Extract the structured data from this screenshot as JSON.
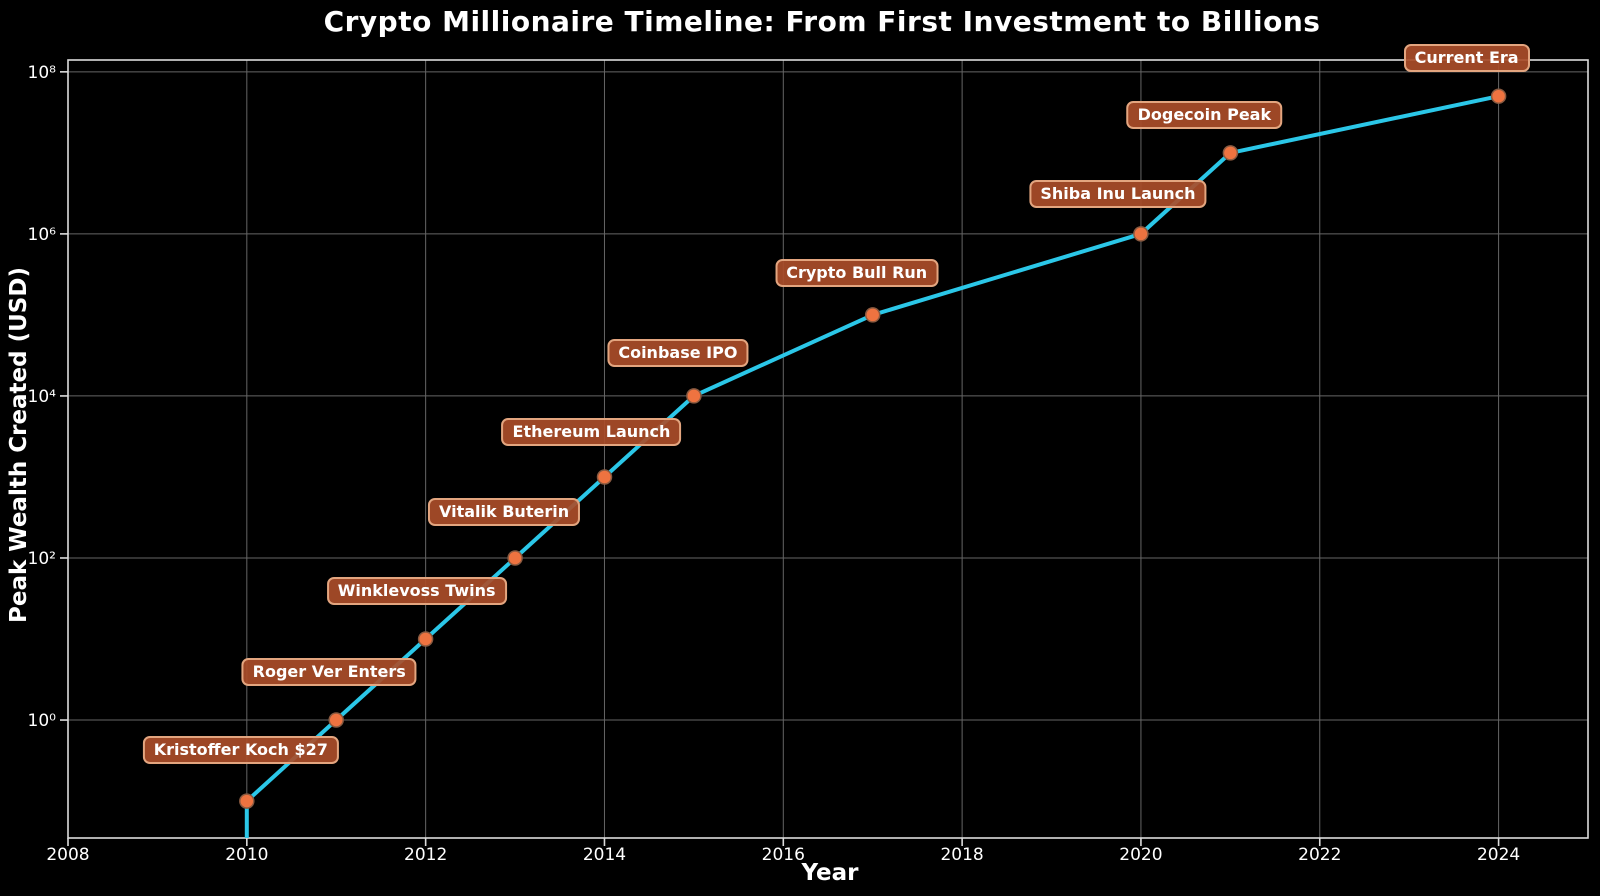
{
  "chart_data": {
    "type": "line",
    "title": "Crypto Millionaire Timeline: From First Investment to Billions",
    "xlabel": "Year",
    "ylabel": "Peak Wealth Created (USD)",
    "yscale": "log",
    "grid": true,
    "legend": "none",
    "xlim": [
      2008,
      2025
    ],
    "ylim": [
      0.035,
      140000000
    ],
    "x_ticks": [
      2008,
      2010,
      2012,
      2014,
      2016,
      2018,
      2020,
      2022,
      2024
    ],
    "y_tick_exponents": [
      0,
      2,
      4,
      6,
      8
    ],
    "colors": {
      "background": "#000000",
      "text": "#ffffff",
      "grid": "#666666",
      "spine": "#dcdcdc",
      "line": "#2bc7e8",
      "marker": "#ee7340",
      "marker_edge": "#8a5a40",
      "annotation_fill": "#aa4d29",
      "annotation_border": "#e3a57f"
    },
    "points": [
      {
        "year": 2010,
        "value": 0.027,
        "label": null,
        "label_offset": null
      },
      {
        "year": 2010,
        "value": 0.1,
        "label": "Kristoffer Koch $27",
        "label_offset": [
          -6,
          -51
        ]
      },
      {
        "year": 2011,
        "value": 1,
        "label": "Roger Ver Enters",
        "label_offset": [
          -7,
          -48
        ]
      },
      {
        "year": 2012,
        "value": 10,
        "label": "Winklevoss Twins",
        "label_offset": [
          -9,
          -48
        ]
      },
      {
        "year": 2013,
        "value": 100,
        "label": "Vitalik Buterin",
        "label_offset": [
          -11,
          -46
        ]
      },
      {
        "year": 2014,
        "value": 1000,
        "label": "Ethereum Launch",
        "label_offset": [
          -13,
          -45
        ]
      },
      {
        "year": 2015,
        "value": 10000,
        "label": "Coinbase IPO",
        "label_offset": [
          -16,
          -43
        ]
      },
      {
        "year": 2017,
        "value": 100000,
        "label": "Crypto Bull Run",
        "label_offset": [
          -16,
          -42
        ]
      },
      {
        "year": 2020,
        "value": 1000000,
        "label": "Shiba Inu Launch",
        "label_offset": [
          -23,
          -40
        ]
      },
      {
        "year": 2021,
        "value": 10000000,
        "label": "Dogecoin Peak",
        "label_offset": [
          -26,
          -38
        ]
      },
      {
        "year": 2024,
        "value": 50000000,
        "label": "Current Era",
        "label_offset": [
          -32,
          -38
        ]
      }
    ]
  }
}
